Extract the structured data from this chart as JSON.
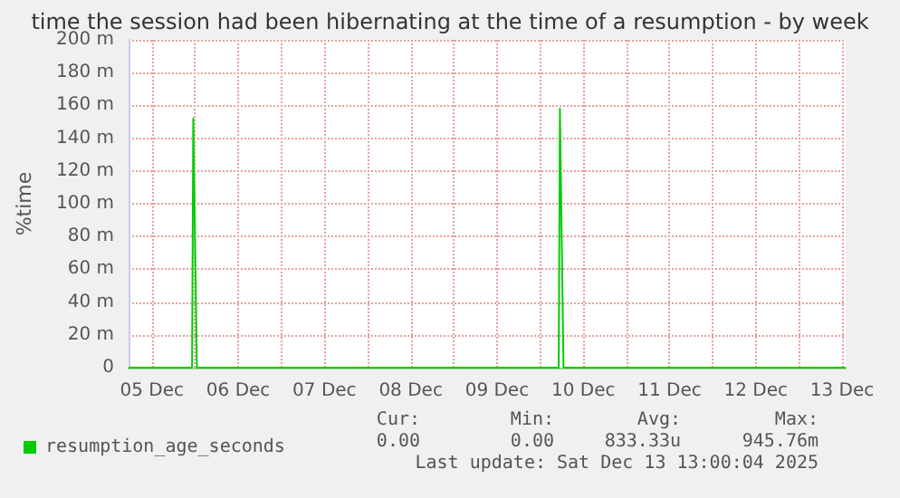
{
  "chart_data": {
    "type": "line",
    "title": "time the session had been hibernating at the time of a resumption - by week",
    "ylabel": "%time",
    "xlim": [
      "2025-12-05T05:30",
      "2025-12-13T13:00"
    ],
    "xticks": [
      {
        "value": "2025-12-05T12:00",
        "label": "05 Dec"
      },
      {
        "value": "2025-12-06T00:00",
        "label": null
      },
      {
        "value": "2025-12-06T12:00",
        "label": "06 Dec"
      },
      {
        "value": "2025-12-07T00:00",
        "label": null
      },
      {
        "value": "2025-12-07T12:00",
        "label": "07 Dec"
      },
      {
        "value": "2025-12-08T00:00",
        "label": null
      },
      {
        "value": "2025-12-08T12:00",
        "label": "08 Dec"
      },
      {
        "value": "2025-12-09T00:00",
        "label": null
      },
      {
        "value": "2025-12-09T12:00",
        "label": "09 Dec"
      },
      {
        "value": "2025-12-10T00:00",
        "label": null
      },
      {
        "value": "2025-12-10T12:00",
        "label": "10 Dec"
      },
      {
        "value": "2025-12-11T00:00",
        "label": null
      },
      {
        "value": "2025-12-11T12:00",
        "label": "11 Dec"
      },
      {
        "value": "2025-12-12T00:00",
        "label": null
      },
      {
        "value": "2025-12-12T12:00",
        "label": "12 Dec"
      },
      {
        "value": "2025-12-13T00:00",
        "label": null
      },
      {
        "value": "2025-12-13T12:00",
        "label": "13 Dec"
      }
    ],
    "ylim": [
      0,
      200
    ],
    "yticks": [
      0,
      {
        "value": 20,
        "label": "20 m"
      },
      {
        "value": 40,
        "label": "40 m"
      },
      {
        "value": 60,
        "label": "60 m"
      },
      {
        "value": 80,
        "label": "80 m"
      },
      {
        "value": 100,
        "label": "100 m"
      },
      {
        "value": 120,
        "label": "120 m"
      },
      {
        "value": 140,
        "label": "140 m"
      },
      {
        "value": 160,
        "label": "160 m"
      },
      {
        "value": 180,
        "label": "180 m"
      },
      {
        "value": 200,
        "label": "200 m"
      }
    ],
    "grid": true,
    "legend": "bottom left",
    "marker": "none",
    "series": [
      {
        "name": "resumption_age_seconds",
        "color": "#00cc00",
        "x": [
          "2025-12-05T05:30",
          "2025-12-05T23:10",
          "2025-12-05T23:30",
          "2025-12-06T00:30",
          "2025-12-10T05:10",
          "2025-12-10T05:30",
          "2025-12-10T06:30",
          "2025-12-13T13:00"
        ],
        "values": [
          0,
          0,
          152,
          0,
          0,
          158,
          0,
          0
        ]
      }
    ],
    "annotations": [
      "Cur:",
      "Min:",
      "Avg:",
      "Max:",
      "0.00",
      "0.00",
      "833.33u",
      "945.76m",
      "Last update: Sat Dec 13 13:00:04 2025"
    ]
  }
}
